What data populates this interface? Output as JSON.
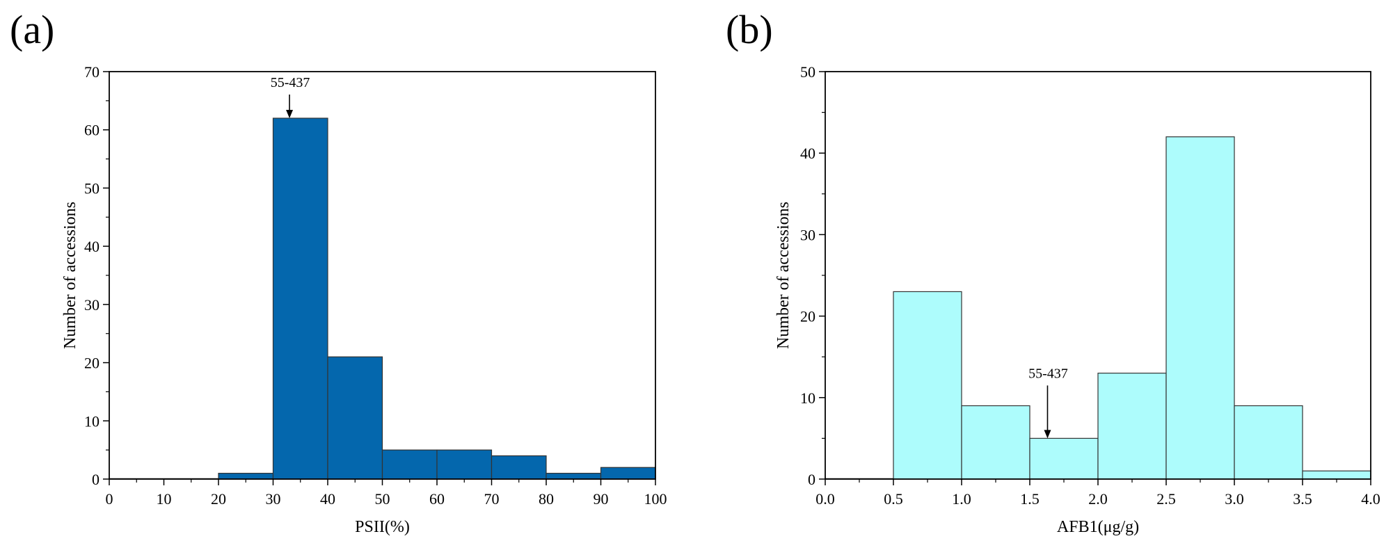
{
  "chart_data": [
    {
      "type": "bar",
      "panel_label": "(a)",
      "xlabel": "PSII(%)",
      "ylabel": "Number of accessions",
      "xlim": [
        0,
        100
      ],
      "ylim": [
        0,
        70
      ],
      "x_ticks": [
        0,
        10,
        20,
        30,
        40,
        50,
        60,
        70,
        80,
        90,
        100
      ],
      "y_ticks": [
        0,
        10,
        20,
        30,
        40,
        50,
        60,
        70
      ],
      "bins": [
        [
          20,
          30
        ],
        [
          30,
          40
        ],
        [
          40,
          50
        ],
        [
          50,
          60
        ],
        [
          60,
          70
        ],
        [
          70,
          80
        ],
        [
          80,
          90
        ],
        [
          90,
          100
        ]
      ],
      "values": [
        1,
        62,
        21,
        5,
        5,
        4,
        1,
        2
      ],
      "bar_color": "#0467ad",
      "annotation": {
        "text": "55-437",
        "x": 33,
        "y": 62
      },
      "grid": false
    },
    {
      "type": "bar",
      "panel_label": "(b)",
      "xlabel": "AFB1(μg/g)",
      "ylabel": "Number of accessions",
      "xlim": [
        0,
        4
      ],
      "ylim": [
        0,
        50
      ],
      "x_ticks": [
        "0.0",
        "0.5",
        "1.0",
        "1.5",
        "2.0",
        "2.5",
        "3.0",
        "3.5",
        "4.0"
      ],
      "y_ticks": [
        0,
        10,
        20,
        30,
        40,
        50
      ],
      "bins": [
        [
          0.5,
          1.0
        ],
        [
          1.0,
          1.5
        ],
        [
          1.5,
          2.0
        ],
        [
          2.0,
          2.5
        ],
        [
          2.5,
          3.0
        ],
        [
          3.0,
          3.5
        ],
        [
          3.5,
          4.0
        ]
      ],
      "values": [
        23,
        9,
        5,
        13,
        42,
        9,
        1
      ],
      "bar_color": "#adfcfc",
      "annotation": {
        "text": "55-437",
        "x": 1.63,
        "y": 5
      },
      "grid": false
    }
  ]
}
